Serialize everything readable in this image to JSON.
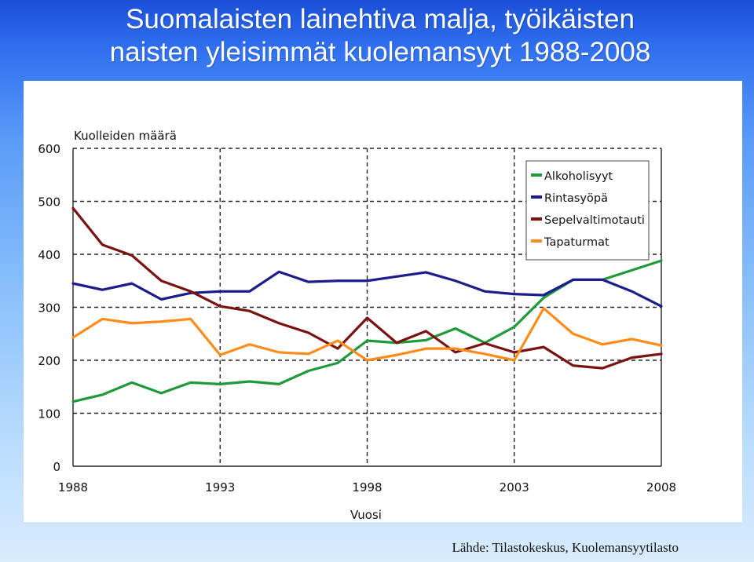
{
  "slide": {
    "title_line1": "Suomalaisten lainehtiva malja, työikäisten",
    "title_line2": "naisten yleisimmät kuolemansyyt 1988-2008",
    "source": "Lähde: Tilastokeskus, Kuolemansyytilasto"
  },
  "chart_data": {
    "type": "line",
    "title": "",
    "ylabel": "Kuolleiden määrä",
    "xlabel": "Vuosi",
    "x": [
      1988,
      1989,
      1990,
      1991,
      1992,
      1993,
      1994,
      1995,
      1996,
      1997,
      1998,
      1999,
      2000,
      2001,
      2002,
      2003,
      2004,
      2005,
      2006,
      2007,
      2008
    ],
    "xticks": [
      "1988",
      "1993",
      "1998",
      "2003",
      "2008"
    ],
    "xtick_values": [
      1988,
      1993,
      1998,
      2003,
      2008
    ],
    "yticks": [
      "0",
      "100",
      "200",
      "300",
      "400",
      "500",
      "600"
    ],
    "ytick_values": [
      0,
      100,
      200,
      300,
      400,
      500,
      600
    ],
    "xlim": [
      1988,
      2008
    ],
    "ylim": [
      0,
      600
    ],
    "grid": "dashed",
    "legend_position": "top-right",
    "series": [
      {
        "name": "Alkoholisyyt",
        "color": "#1e9a3a",
        "values": [
          122,
          135,
          158,
          138,
          158,
          155,
          160,
          155,
          180,
          195,
          237,
          233,
          238,
          260,
          233,
          263,
          318,
          352,
          352,
          370,
          388
        ]
      },
      {
        "name": "Rintasyöpä",
        "color": "#1c1c8c",
        "values": [
          345,
          333,
          345,
          315,
          327,
          330,
          330,
          367,
          348,
          350,
          350,
          358,
          366,
          350,
          330,
          325,
          323,
          352,
          352,
          330,
          302
        ]
      },
      {
        "name": "Sepelvaltimotauti",
        "color": "#7a1212",
        "values": [
          487,
          418,
          398,
          350,
          330,
          302,
          293,
          270,
          252,
          222,
          280,
          233,
          255,
          215,
          232,
          215,
          225,
          190,
          185,
          205,
          212
        ]
      },
      {
        "name": "Tapaturmat",
        "color": "#ff8c1a",
        "values": [
          243,
          278,
          270,
          273,
          278,
          210,
          230,
          215,
          212,
          237,
          200,
          210,
          222,
          222,
          212,
          200,
          298,
          250,
          230,
          240,
          228
        ]
      }
    ]
  }
}
